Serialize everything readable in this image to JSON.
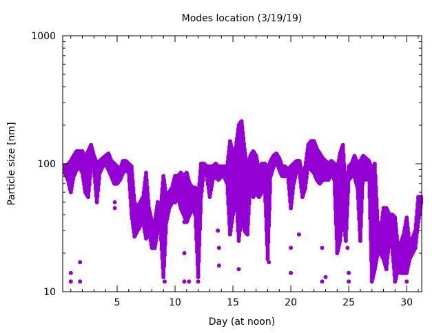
{
  "chart_data": {
    "type": "scatter",
    "title": "Modes location (3/19/19)",
    "xlabel": "Day (at noon)",
    "ylabel": "Particle size [nm]",
    "xlim": [
      0.3,
      31.3
    ],
    "ylim": [
      10,
      1000
    ],
    "yscale": "log",
    "xticks": [
      5,
      10,
      15,
      20,
      25,
      30
    ],
    "xtick_labels": [
      "5",
      "10",
      "15",
      "20",
      "25",
      "30"
    ],
    "yticks": [
      10,
      100,
      1000
    ],
    "ytick_labels": [
      "10",
      "100",
      "1000"
    ],
    "grid": false,
    "legend": "none",
    "marker_color": "#9400d3",
    "bands_note": "[day, min_nm, max_nm] envelope of dense points",
    "bands": [
      [
        0.5,
        85,
        97
      ],
      [
        0.75,
        75,
        98
      ],
      [
        1.0,
        60,
        105
      ],
      [
        1.25,
        80,
        115
      ],
      [
        1.5,
        90,
        125
      ],
      [
        1.75,
        95,
        125
      ],
      [
        2.0,
        85,
        125
      ],
      [
        2.25,
        60,
        110
      ],
      [
        2.5,
        55,
        125
      ],
      [
        2.75,
        95,
        140
      ],
      [
        3.0,
        90,
        115
      ],
      [
        3.25,
        50,
        100
      ],
      [
        3.5,
        85,
        105
      ],
      [
        3.75,
        95,
        110
      ],
      [
        4.0,
        100,
        115
      ],
      [
        4.25,
        90,
        120
      ],
      [
        4.5,
        80,
        105
      ],
      [
        4.75,
        70,
        100
      ],
      [
        5.0,
        70,
        95
      ],
      [
        5.25,
        75,
        90
      ],
      [
        5.5,
        85,
        105
      ],
      [
        5.75,
        90,
        105
      ],
      [
        6.0,
        85,
        100
      ],
      [
        6.25,
        40,
        95
      ],
      [
        6.5,
        27,
        50
      ],
      [
        6.75,
        30,
        45
      ],
      [
        7.0,
        33,
        50
      ],
      [
        7.25,
        35,
        55
      ],
      [
        7.5,
        26,
        85
      ],
      [
        7.75,
        30,
        45
      ],
      [
        8.0,
        22,
        35
      ],
      [
        8.25,
        22,
        35
      ],
      [
        8.5,
        30,
        50
      ],
      [
        8.75,
        30,
        45
      ],
      [
        9.0,
        13,
        80
      ],
      [
        9.25,
        35,
        55
      ],
      [
        9.5,
        45,
        60
      ],
      [
        9.75,
        50,
        65
      ],
      [
        10.0,
        50,
        80
      ],
      [
        10.25,
        55,
        80
      ],
      [
        10.5,
        45,
        85
      ],
      [
        10.75,
        40,
        80
      ],
      [
        11.0,
        35,
        85
      ],
      [
        11.25,
        40,
        70
      ],
      [
        11.5,
        45,
        65
      ],
      [
        11.75,
        40,
        65
      ],
      [
        12.0,
        13,
        55
      ],
      [
        12.25,
        55,
        100
      ],
      [
        12.5,
        90,
        100
      ],
      [
        12.75,
        80,
        95
      ],
      [
        13.0,
        55,
        95
      ],
      [
        13.25,
        75,
        95
      ],
      [
        13.5,
        80,
        100
      ],
      [
        13.75,
        75,
        95
      ],
      [
        14.0,
        80,
        95
      ],
      [
        14.25,
        80,
        95
      ],
      [
        14.5,
        70,
        95
      ],
      [
        14.75,
        28,
        150
      ],
      [
        15.0,
        40,
        120
      ],
      [
        15.25,
        60,
        135
      ],
      [
        15.5,
        25,
        200
      ],
      [
        15.75,
        40,
        215
      ],
      [
        16.0,
        30,
        130
      ],
      [
        16.25,
        28,
        90
      ],
      [
        16.5,
        70,
        115
      ],
      [
        16.75,
        55,
        125
      ],
      [
        17.0,
        60,
        115
      ],
      [
        17.25,
        55,
        90
      ],
      [
        17.5,
        60,
        100
      ],
      [
        17.75,
        65,
        100
      ],
      [
        18.0,
        18,
        90
      ],
      [
        18.25,
        80,
        105
      ],
      [
        18.5,
        95,
        115
      ],
      [
        18.75,
        105,
        120
      ],
      [
        19.0,
        90,
        110
      ],
      [
        19.25,
        80,
        95
      ],
      [
        19.5,
        80,
        95
      ],
      [
        19.75,
        80,
        90
      ],
      [
        20.0,
        45,
        95
      ],
      [
        20.25,
        70,
        100
      ],
      [
        20.5,
        90,
        105
      ],
      [
        20.75,
        85,
        105
      ],
      [
        21.0,
        55,
        80
      ],
      [
        21.25,
        65,
        95
      ],
      [
        21.5,
        100,
        140
      ],
      [
        21.75,
        90,
        150
      ],
      [
        22.0,
        85,
        150
      ],
      [
        22.25,
        75,
        130
      ],
      [
        22.5,
        70,
        120
      ],
      [
        22.75,
        75,
        110
      ],
      [
        23.0,
        75,
        105
      ],
      [
        23.25,
        75,
        100
      ],
      [
        23.5,
        85,
        105
      ],
      [
        23.75,
        75,
        100
      ],
      [
        24.0,
        20,
        90
      ],
      [
        24.25,
        25,
        120
      ],
      [
        24.5,
        40,
        140
      ],
      [
        24.75,
        25,
        60
      ],
      [
        25.0,
        75,
        95
      ],
      [
        25.25,
        80,
        100
      ],
      [
        25.5,
        80,
        115
      ],
      [
        25.75,
        65,
        100
      ],
      [
        26.0,
        25,
        105
      ],
      [
        26.25,
        90,
        115
      ],
      [
        26.5,
        75,
        110
      ],
      [
        26.75,
        80,
        105
      ],
      [
        27.0,
        12,
        90
      ],
      [
        27.25,
        15,
        100
      ],
      [
        27.5,
        20,
        35
      ],
      [
        27.75,
        20,
        30
      ],
      [
        28.0,
        18,
        45
      ],
      [
        28.25,
        15,
        45
      ],
      [
        28.5,
        25,
        40
      ],
      [
        28.75,
        22,
        40
      ],
      [
        29.0,
        12,
        38
      ],
      [
        29.25,
        15,
        22
      ],
      [
        29.5,
        14,
        24
      ],
      [
        29.75,
        14,
        28
      ],
      [
        30.0,
        14,
        38
      ],
      [
        30.25,
        18,
        24
      ],
      [
        30.5,
        20,
        26
      ],
      [
        30.75,
        22,
        30
      ],
      [
        31.0,
        35,
        55
      ],
      [
        31.25,
        48,
        55
      ]
    ],
    "points": [
      [
        1.0,
        12
      ],
      [
        1.0,
        14
      ],
      [
        1.8,
        12
      ],
      [
        1.8,
        17
      ],
      [
        4.8,
        45
      ],
      [
        4.8,
        50
      ],
      [
        9.1,
        12
      ],
      [
        10.8,
        12
      ],
      [
        10.8,
        20
      ],
      [
        11.2,
        12
      ],
      [
        12.0,
        12
      ],
      [
        13.8,
        16
      ],
      [
        13.8,
        22
      ],
      [
        15.5,
        15
      ],
      [
        18.1,
        17
      ],
      [
        20.0,
        14
      ],
      [
        20.0,
        22
      ],
      [
        20.7,
        28
      ],
      [
        22.7,
        12
      ],
      [
        22.7,
        22
      ],
      [
        23.0,
        13
      ],
      [
        25.0,
        12
      ],
      [
        25.0,
        14
      ],
      [
        27.3,
        55
      ],
      [
        27.3,
        75
      ],
      [
        29.0,
        18
      ],
      [
        30.0,
        12
      ],
      [
        10.8,
        35
      ],
      [
        13.7,
        30
      ],
      [
        24.9,
        22
      ]
    ]
  }
}
